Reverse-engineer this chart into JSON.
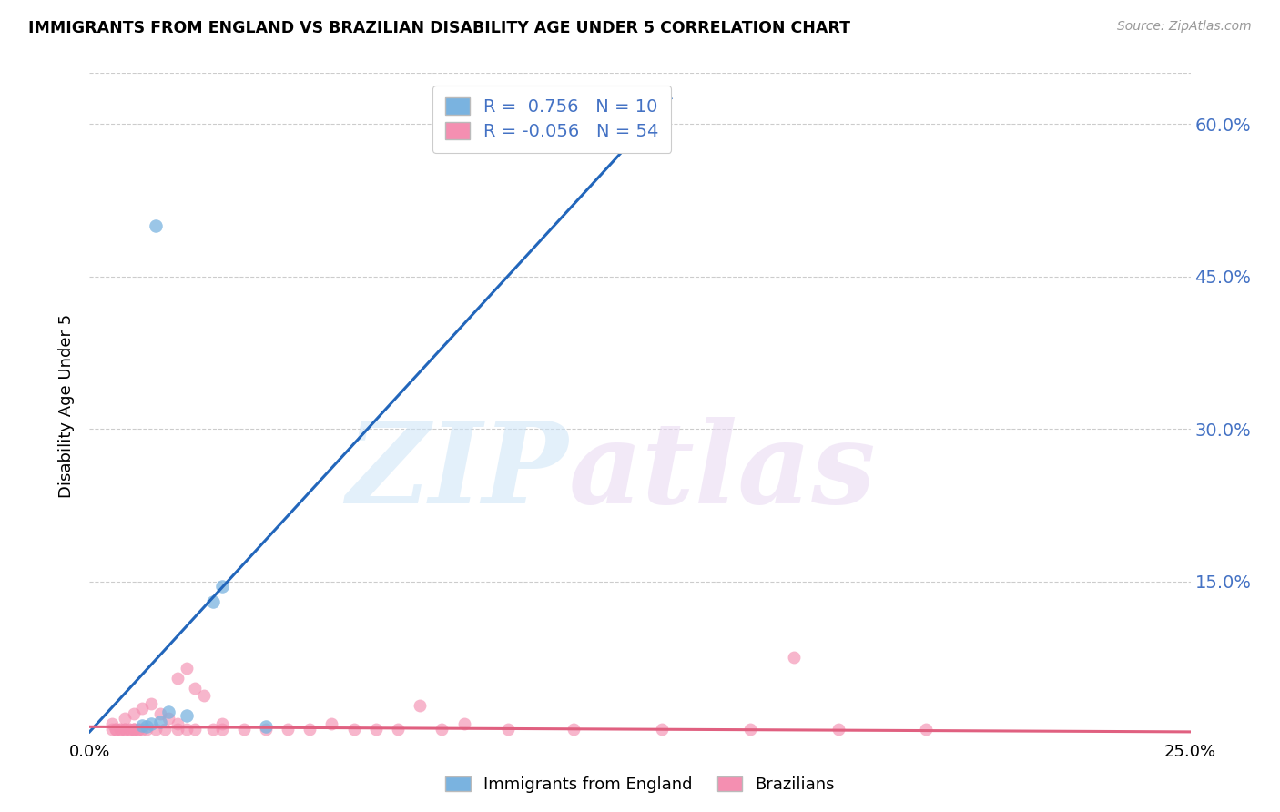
{
  "title": "IMMIGRANTS FROM ENGLAND VS BRAZILIAN DISABILITY AGE UNDER 5 CORRELATION CHART",
  "source": "Source: ZipAtlas.com",
  "ylabel": "Disability Age Under 5",
  "ytick_labels": [
    "",
    "15.0%",
    "30.0%",
    "45.0%",
    "60.0%"
  ],
  "ytick_values": [
    0,
    0.15,
    0.3,
    0.45,
    0.6
  ],
  "xlim": [
    0.0,
    0.25
  ],
  "ylim": [
    -0.005,
    0.65
  ],
  "legend_england_R": "0.756",
  "legend_england_N": "10",
  "legend_brazil_R": "-0.056",
  "legend_brazil_N": "54",
  "england_color": "#7ab3e0",
  "brazil_color": "#f48fb1",
  "england_line_color": "#2266bb",
  "brazil_line_color": "#e06080",
  "england_x": [
    0.015,
    0.03,
    0.028,
    0.018,
    0.022,
    0.016,
    0.014,
    0.012,
    0.013,
    0.04
  ],
  "england_y": [
    0.5,
    0.145,
    0.13,
    0.022,
    0.018,
    0.012,
    0.01,
    0.008,
    0.007,
    0.007
  ],
  "england_trendline_x": [
    0.0,
    0.132
  ],
  "england_trendline_y": [
    0.002,
    0.625
  ],
  "brazil_trendline_x": [
    0.0,
    0.25
  ],
  "brazil_trendline_y": [
    0.007,
    0.002
  ],
  "brazil_x": [
    0.005,
    0.008,
    0.01,
    0.012,
    0.014,
    0.016,
    0.018,
    0.02,
    0.022,
    0.024,
    0.005,
    0.007,
    0.009,
    0.011,
    0.013,
    0.015,
    0.017,
    0.006,
    0.008,
    0.01,
    0.02,
    0.022,
    0.024,
    0.026,
    0.028,
    0.03,
    0.006,
    0.008,
    0.01,
    0.012,
    0.03,
    0.04,
    0.05,
    0.06,
    0.07,
    0.08,
    0.075,
    0.085,
    0.01,
    0.02,
    0.035,
    0.045,
    0.055,
    0.065,
    0.095,
    0.11,
    0.13,
    0.15,
    0.17,
    0.19,
    0.007,
    0.009,
    0.011,
    0.16
  ],
  "brazil_y": [
    0.01,
    0.015,
    0.02,
    0.025,
    0.03,
    0.02,
    0.015,
    0.01,
    0.005,
    0.005,
    0.005,
    0.005,
    0.005,
    0.005,
    0.005,
    0.005,
    0.005,
    0.005,
    0.005,
    0.005,
    0.055,
    0.065,
    0.045,
    0.038,
    0.005,
    0.005,
    0.005,
    0.005,
    0.005,
    0.005,
    0.01,
    0.005,
    0.005,
    0.005,
    0.005,
    0.005,
    0.028,
    0.01,
    0.005,
    0.005,
    0.005,
    0.005,
    0.01,
    0.005,
    0.005,
    0.005,
    0.005,
    0.005,
    0.005,
    0.005,
    0.005,
    0.005,
    0.005,
    0.075
  ]
}
